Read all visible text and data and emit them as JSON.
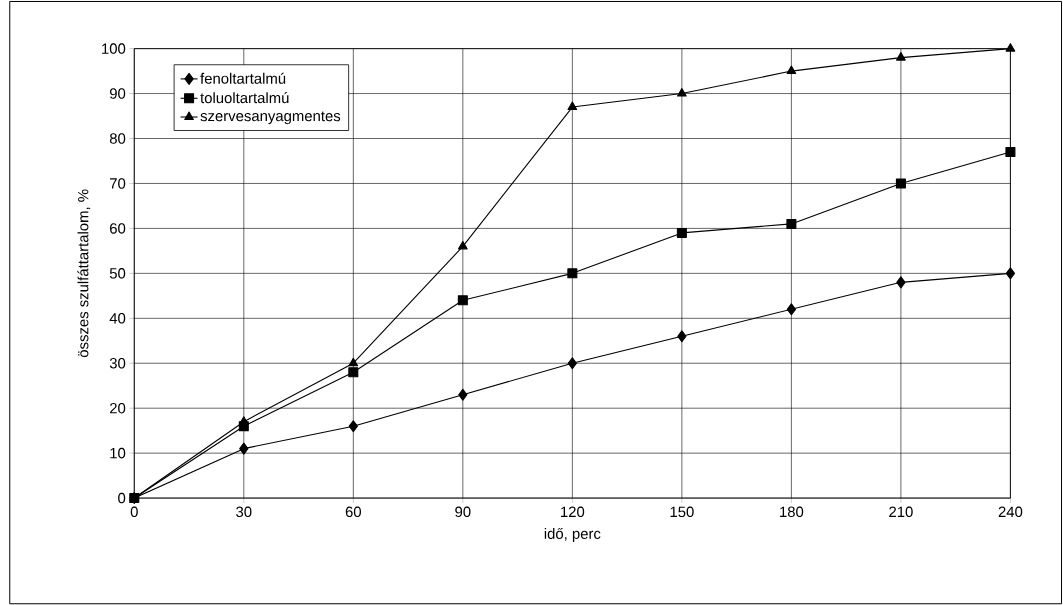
{
  "chart_data": {
    "type": "line",
    "xlabel": "idő, perc",
    "ylabel": "összes szulfáttartalom, %",
    "x": [
      0,
      30,
      60,
      90,
      120,
      150,
      180,
      210,
      240
    ],
    "series": [
      {
        "name": "fenoltartalmú",
        "color": "#000000",
        "marker": "diamond",
        "values": [
          0,
          11,
          16,
          23,
          30,
          36,
          42,
          48,
          50
        ]
      },
      {
        "name": "toluoltartalmú",
        "color": "#000000",
        "marker": "square",
        "values": [
          0,
          16,
          28,
          44,
          50,
          59,
          61,
          70,
          77
        ]
      },
      {
        "name": "szervesanyagmentes",
        "color": "#000000",
        "marker": "triangle",
        "values": [
          0,
          17,
          30,
          56,
          87,
          90,
          95,
          98,
          100
        ]
      }
    ],
    "xlim": [
      0,
      240
    ],
    "ylim": [
      0,
      100
    ],
    "xticks": [
      0,
      30,
      60,
      90,
      120,
      150,
      180,
      210,
      240
    ],
    "yticks": [
      0,
      10,
      20,
      30,
      40,
      50,
      60,
      70,
      80,
      90,
      100
    ],
    "grid": true,
    "legend": "top left",
    "line_style": "solid"
  }
}
